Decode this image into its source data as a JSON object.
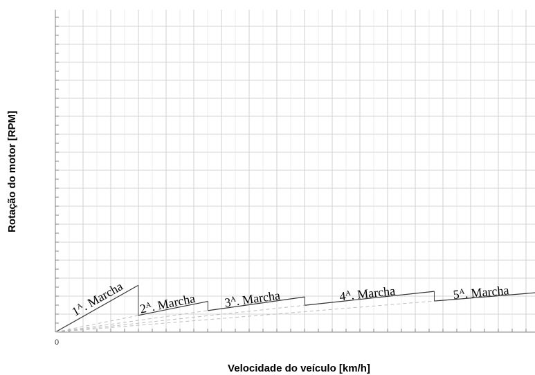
{
  "chart_data": {
    "type": "line",
    "xlabel": "Velocidade do veículo [km/h]",
    "ylabel": "Rotação do motor [RPM]",
    "x_tick_labels": [
      "0"
    ],
    "xlim": [
      0,
      100
    ],
    "ylim": [
      0,
      100
    ],
    "grid": true,
    "gear_shift_rpm": 100,
    "series": [
      {
        "name": "1A. Marcha",
        "label_main": "1",
        "label_sup": "A",
        "label_rest": ". Marcha",
        "slope": 0.84,
        "v_shift": 17.3,
        "v_prev_shift": 0
      },
      {
        "name": "2A. Marcha",
        "label_main": "2",
        "label_sup": "A",
        "label_rest": ". Marcha",
        "slope": 0.3,
        "v_shift": 31.8,
        "v_prev_shift": 17.3
      },
      {
        "name": "3A. Marcha",
        "label_main": "3",
        "label_sup": "A",
        "label_rest": ". Marcha",
        "slope": 0.21,
        "v_shift": 52.0,
        "v_prev_shift": 31.8
      },
      {
        "name": "4A. Marcha",
        "label_main": "4",
        "label_sup": "A",
        "label_rest": ". Marcha",
        "slope": 0.16,
        "v_shift": 79.0,
        "v_prev_shift": 52.0
      },
      {
        "name": "5A. Marcha",
        "label_main": "5",
        "label_sup": "A",
        "label_rest": ". Marcha",
        "slope": 0.122,
        "v_shift": 100,
        "v_prev_shift": 79.0
      }
    ]
  }
}
